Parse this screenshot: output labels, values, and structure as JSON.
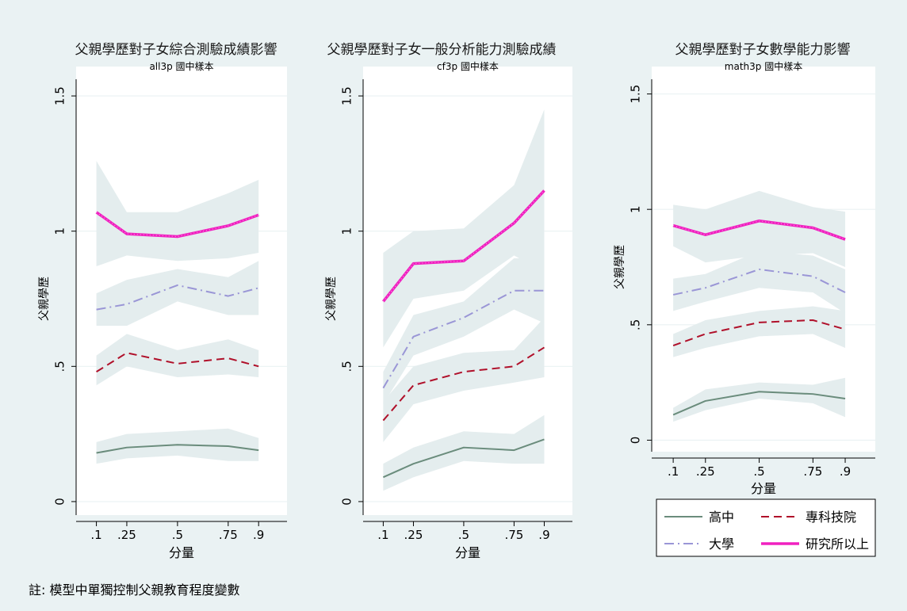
{
  "note": "註: 模型中單獨控制父親教育程度變數",
  "colors": {
    "background": "#eaf2f3",
    "plot_bg": "#ffffff",
    "ci_band": "#e4edee",
    "grid": "#eaf2f3",
    "高中": "#6a8c7c",
    "專科技院": "#b0102a",
    "大學": "#9a96d6",
    "研究所以上": "#f020c0"
  },
  "legend": {
    "position": "bottom-right",
    "items": [
      "高中",
      "專科技院",
      "大學",
      "研究所以上"
    ]
  },
  "chart_data": [
    {
      "type": "line",
      "title": "父親學歷對子女綜合測驗成績影響",
      "subtitle": "all3p 國中樣本",
      "xlabel": "分量",
      "ylabel": "父親學歷",
      "x": [
        0.1,
        0.25,
        0.5,
        0.75,
        0.9
      ],
      "xtick_labels": [
        ".1",
        ".25",
        ".5",
        ".75",
        ".9"
      ],
      "ylim": [
        -0.05,
        1.55
      ],
      "yticks": [
        0,
        0.5,
        1,
        1.5
      ],
      "ytick_labels": [
        "0",
        ".5",
        "1",
        "1.5"
      ],
      "series": [
        {
          "name": "高中",
          "values": [
            0.18,
            0.2,
            0.21,
            0.205,
            0.19
          ],
          "lower": [
            0.14,
            0.16,
            0.17,
            0.15,
            0.15
          ],
          "upper": [
            0.22,
            0.25,
            0.26,
            0.27,
            0.235
          ]
        },
        {
          "name": "專科技院",
          "values": [
            0.48,
            0.55,
            0.51,
            0.53,
            0.5
          ],
          "lower": [
            0.43,
            0.5,
            0.46,
            0.47,
            0.46
          ],
          "upper": [
            0.54,
            0.62,
            0.56,
            0.6,
            0.56
          ]
        },
        {
          "name": "大學",
          "values": [
            0.71,
            0.73,
            0.8,
            0.76,
            0.79
          ],
          "lower": [
            0.65,
            0.65,
            0.74,
            0.69,
            0.69
          ],
          "upper": [
            0.77,
            0.82,
            0.86,
            0.83,
            0.89
          ]
        },
        {
          "name": "研究所以上",
          "values": [
            1.07,
            0.99,
            0.98,
            1.02,
            1.06
          ],
          "lower": [
            0.87,
            0.91,
            0.89,
            0.9,
            0.92
          ],
          "upper": [
            1.26,
            1.07,
            1.07,
            1.14,
            1.19
          ]
        }
      ]
    },
    {
      "type": "line",
      "title": "父親學歷對子女一般分析能力測驗成績",
      "subtitle": "cf3p 國中樣本",
      "xlabel": "分量",
      "ylabel": "父親學歷",
      "x": [
        0.1,
        0.25,
        0.5,
        0.75,
        0.9
      ],
      "xtick_labels": [
        ".1",
        ".25",
        ".5",
        ".75",
        ".9"
      ],
      "ylim": [
        -0.05,
        1.55
      ],
      "yticks": [
        0,
        0.5,
        1,
        1.5
      ],
      "ytick_labels": [
        "0",
        ".5",
        "1",
        "1.5"
      ],
      "series": [
        {
          "name": "高中",
          "values": [
            0.09,
            0.14,
            0.2,
            0.19,
            0.23
          ],
          "lower": [
            0.04,
            0.09,
            0.15,
            0.14,
            0.14
          ],
          "upper": [
            0.14,
            0.2,
            0.26,
            0.25,
            0.32
          ]
        },
        {
          "name": "專科技院",
          "values": [
            0.3,
            0.43,
            0.48,
            0.5,
            0.57
          ],
          "lower": [
            0.22,
            0.36,
            0.41,
            0.44,
            0.46
          ],
          "upper": [
            0.37,
            0.5,
            0.55,
            0.56,
            0.68
          ]
        },
        {
          "name": "大學",
          "values": [
            0.42,
            0.61,
            0.68,
            0.78,
            0.78
          ],
          "lower": [
            0.36,
            0.54,
            0.61,
            0.71,
            0.66
          ],
          "upper": [
            0.48,
            0.69,
            0.74,
            0.9,
            0.9
          ]
        },
        {
          "name": "研究所以上",
          "values": [
            0.74,
            0.88,
            0.89,
            1.03,
            1.15
          ],
          "lower": [
            0.57,
            0.75,
            0.78,
            0.91,
            0.85
          ],
          "upper": [
            0.92,
            1.0,
            1.01,
            1.17,
            1.45
          ]
        }
      ]
    },
    {
      "type": "line",
      "title": "父親學歷對子女數學能力影響",
      "subtitle": "math3p 國中樣本",
      "xlabel": "分量",
      "ylabel": "父親學歷",
      "x": [
        0.1,
        0.25,
        0.5,
        0.75,
        0.9
      ],
      "xtick_labels": [
        ".1",
        ".25",
        ".5",
        ".75",
        ".9"
      ],
      "ylim": [
        -0.05,
        1.55
      ],
      "yticks": [
        0,
        0.5,
        1,
        1.5
      ],
      "ytick_labels": [
        "0",
        ".5",
        "1",
        "1.5"
      ],
      "series": [
        {
          "name": "高中",
          "values": [
            0.11,
            0.17,
            0.21,
            0.2,
            0.18
          ],
          "lower": [
            0.08,
            0.13,
            0.18,
            0.16,
            0.1
          ],
          "upper": [
            0.14,
            0.22,
            0.25,
            0.24,
            0.27
          ]
        },
        {
          "name": "專科技院",
          "values": [
            0.41,
            0.46,
            0.51,
            0.52,
            0.48
          ],
          "lower": [
            0.36,
            0.4,
            0.45,
            0.46,
            0.4
          ],
          "upper": [
            0.46,
            0.52,
            0.56,
            0.58,
            0.56
          ]
        },
        {
          "name": "大學",
          "values": [
            0.63,
            0.66,
            0.74,
            0.71,
            0.64
          ],
          "lower": [
            0.56,
            0.6,
            0.66,
            0.64,
            0.55
          ],
          "upper": [
            0.7,
            0.72,
            0.82,
            0.8,
            0.74
          ]
        },
        {
          "name": "研究所以上",
          "values": [
            0.93,
            0.89,
            0.95,
            0.92,
            0.87
          ],
          "lower": [
            0.84,
            0.77,
            0.8,
            0.81,
            0.75
          ],
          "upper": [
            1.02,
            1.0,
            1.08,
            1.01,
            0.99
          ]
        }
      ]
    }
  ]
}
